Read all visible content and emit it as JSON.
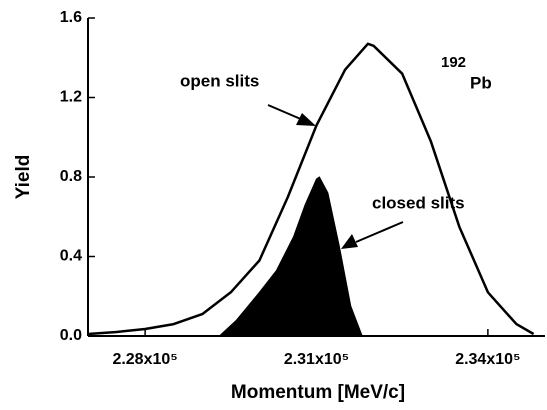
{
  "chart_data": {
    "type": "line",
    "xlabel": "Momentum [MeV/c]",
    "ylabel": "Yield",
    "xlim": [
      227000,
      235000
    ],
    "ylim": [
      0,
      1.6
    ],
    "xticks": [
      {
        "value": 228000,
        "label": "2.28x10⁵"
      },
      {
        "value": 231000,
        "label": "2.31x10⁵"
      },
      {
        "value": 234000,
        "label": "2.34x10⁵"
      }
    ],
    "yticks": [
      {
        "value": 0,
        "label": "0.0"
      },
      0.4,
      0.8,
      1.2,
      1.6
    ],
    "series": [
      {
        "name": "open slits",
        "color": "#000000",
        "style": "line",
        "x": [
          227000,
          227500,
          228000,
          228500,
          229000,
          229500,
          230000,
          230500,
          231000,
          231500,
          231900,
          232000,
          232500,
          233000,
          233500,
          234000,
          234500,
          234800
        ],
        "values": [
          0.01,
          0.02,
          0.035,
          0.06,
          0.11,
          0.22,
          0.38,
          0.7,
          1.06,
          1.34,
          1.47,
          1.46,
          1.32,
          0.98,
          0.55,
          0.22,
          0.06,
          0.01
        ]
      },
      {
        "name": "closed slits",
        "color": "#000000",
        "style": "area",
        "x": [
          229300,
          229600,
          230000,
          230300,
          230600,
          230800,
          231000,
          231050,
          231200,
          231400,
          231600,
          231800
        ],
        "values": [
          0,
          0.08,
          0.22,
          0.33,
          0.5,
          0.66,
          0.79,
          0.8,
          0.72,
          0.45,
          0.15,
          0
        ]
      }
    ],
    "annotations": [
      "open slits",
      "closed slits",
      "192",
      "Pb"
    ]
  }
}
